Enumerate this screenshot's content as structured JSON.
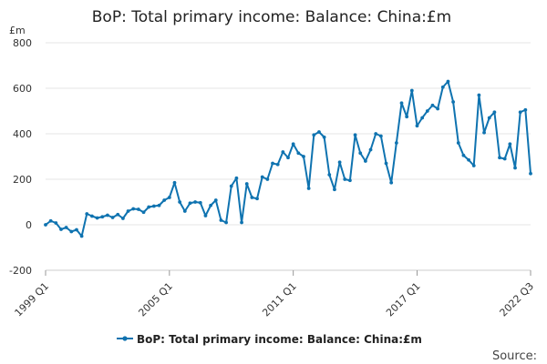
{
  "chart_data": {
    "type": "line",
    "title": "BoP: Total primary income: Balance: China:£m",
    "unit_label": "£m",
    "xlabel": "",
    "ylabel": "",
    "ylim": [
      -200,
      800
    ],
    "y_ticks": [
      -200,
      0,
      200,
      400,
      600,
      800
    ],
    "x_tick_labels": [
      "1999 Q1",
      "2005 Q1",
      "2011 Q1",
      "2017 Q1",
      "2022 Q3"
    ],
    "x_tick_indices": [
      0,
      24,
      48,
      72,
      94
    ],
    "grid": true,
    "legend_position": "bottom",
    "source_label": "Source:",
    "series": [
      {
        "name": "BoP: Total primary income: Balance: China:£m",
        "color": "#0f73b0",
        "values": [
          0,
          17,
          8,
          -20,
          -12,
          -30,
          -22,
          -50,
          48,
          38,
          30,
          35,
          42,
          32,
          45,
          28,
          60,
          70,
          68,
          55,
          78,
          82,
          85,
          108,
          120,
          185,
          100,
          60,
          95,
          100,
          97,
          40,
          85,
          108,
          20,
          10,
          170,
          205,
          10,
          180,
          120,
          115,
          210,
          200,
          270,
          265,
          320,
          295,
          355,
          315,
          300,
          160,
          395,
          408,
          385,
          220,
          155,
          275,
          200,
          195,
          395,
          315,
          280,
          330,
          400,
          390,
          270,
          185,
          360,
          535,
          475,
          590,
          435,
          470,
          500,
          525,
          510,
          605,
          630,
          540,
          360,
          305,
          285,
          260,
          570,
          405,
          470,
          495,
          295,
          290,
          355,
          250,
          495,
          505,
          225
        ]
      }
    ]
  }
}
